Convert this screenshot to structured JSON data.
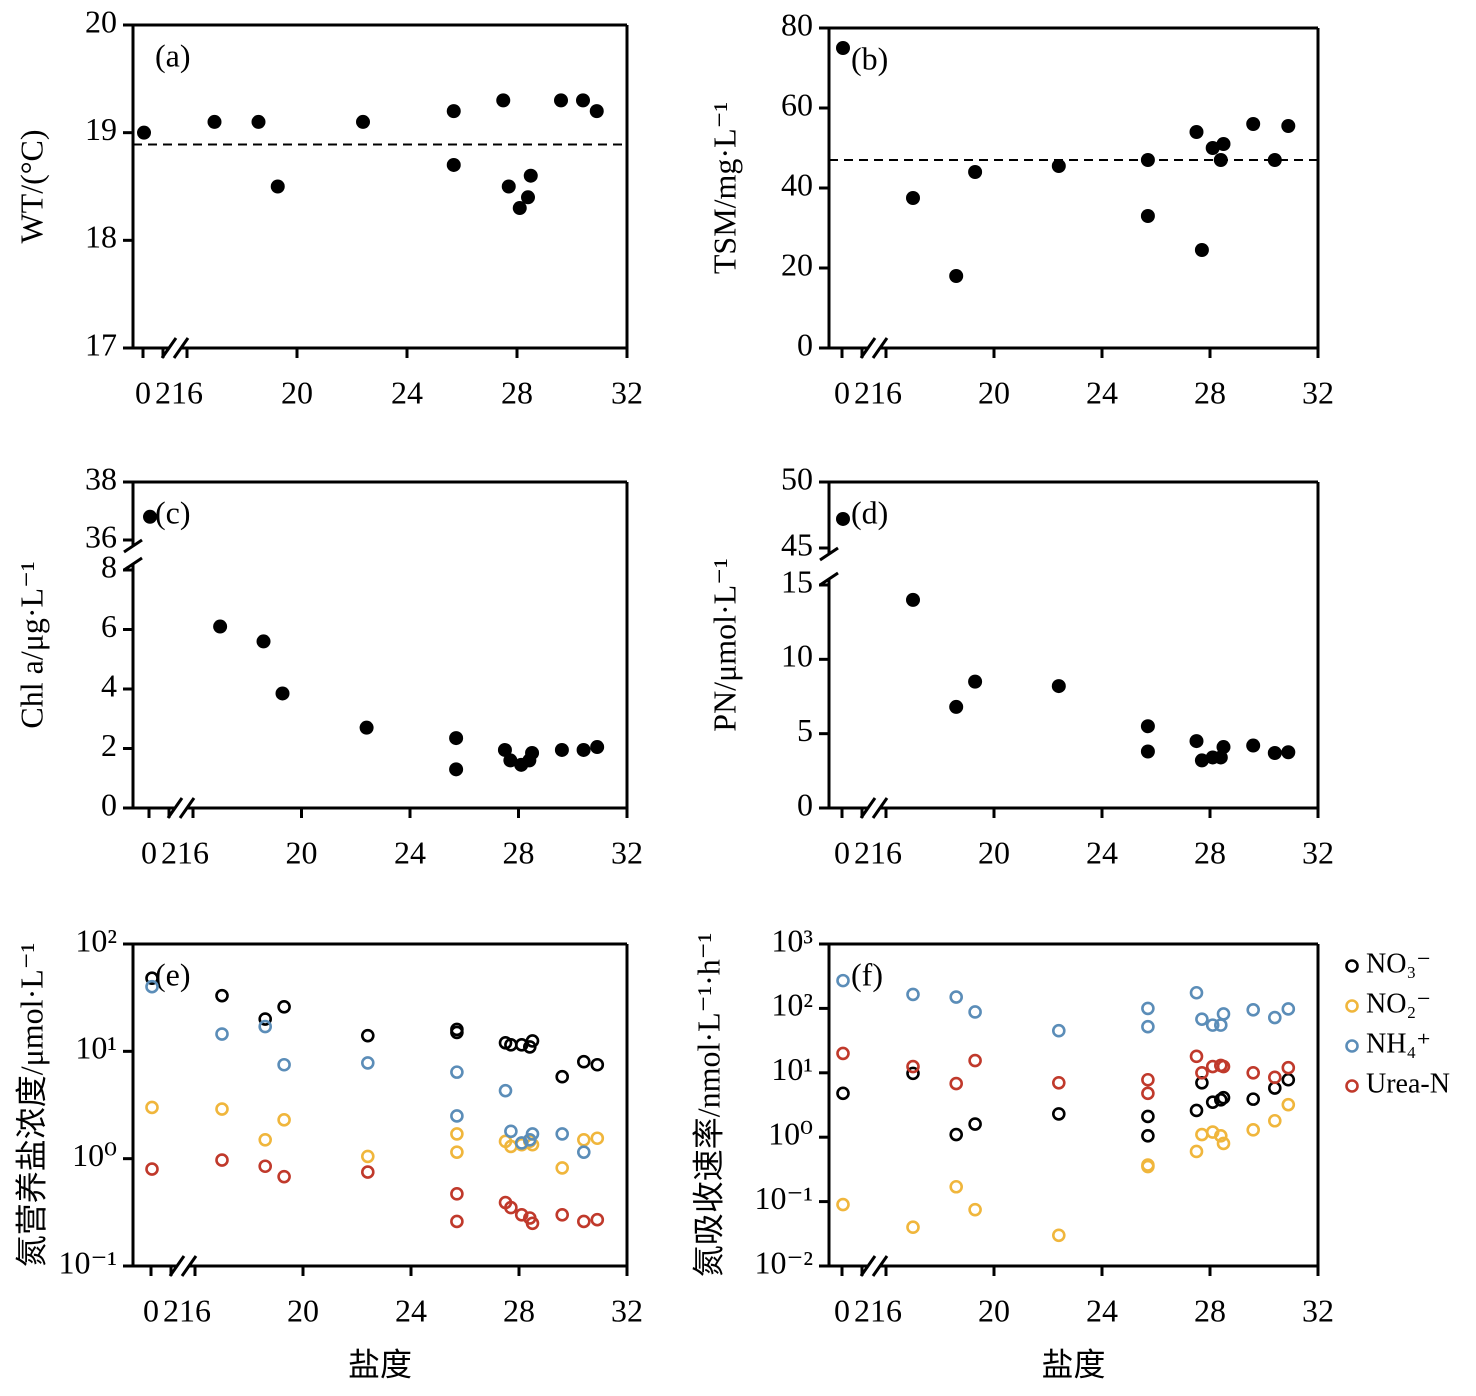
{
  "chart_data": [
    {
      "type": "scatter",
      "title": "(a)",
      "ylabel": "WT/(°C)",
      "color": "#000000",
      "x": [
        0.1,
        17.0,
        18.6,
        19.3,
        22.4,
        25.7,
        25.7,
        27.5,
        27.7,
        28.1,
        28.4,
        28.5,
        29.6,
        30.4,
        30.9
      ],
      "values": [
        19.0,
        19.1,
        19.1,
        18.5,
        19.1,
        19.2,
        18.7,
        19.3,
        18.5,
        18.3,
        18.4,
        18.6,
        19.3,
        19.3,
        19.2
      ],
      "hline": 18.89,
      "xlim": [
        0,
        32
      ],
      "x_break": [
        2,
        16
      ],
      "xticks": [
        0,
        2,
        16,
        20,
        24,
        28,
        32
      ],
      "ylim": [
        17,
        20
      ],
      "yticks": [
        17,
        18,
        19,
        20
      ]
    },
    {
      "type": "scatter",
      "title": "(b)",
      "ylabel": "TSM/mg·L⁻¹",
      "color": "#000000",
      "x": [
        0.1,
        17.0,
        18.6,
        19.3,
        22.4,
        25.7,
        25.7,
        27.5,
        27.7,
        28.1,
        28.4,
        28.5,
        29.6,
        30.4,
        30.9
      ],
      "values": [
        75,
        37.5,
        18,
        44,
        45.5,
        47,
        33,
        54,
        24.5,
        50,
        47,
        51,
        56,
        47,
        55.5
      ],
      "hline": 47,
      "xlim": [
        0,
        32
      ],
      "x_break": [
        2,
        16
      ],
      "xticks": [
        0,
        2,
        16,
        20,
        24,
        28,
        32
      ],
      "ylim": [
        0,
        80
      ],
      "yticks": [
        0,
        20,
        40,
        60,
        80
      ]
    },
    {
      "type": "scatter",
      "title": "(c)",
      "ylabel": "Chl a/μg·L⁻¹",
      "color": "#000000",
      "x": [
        0.1,
        17.0,
        18.6,
        19.3,
        22.4,
        25.7,
        25.7,
        27.5,
        27.7,
        28.1,
        28.4,
        28.5,
        29.6,
        30.4,
        30.9
      ],
      "values": [
        36.8,
        6.1,
        5.6,
        3.85,
        2.7,
        2.35,
        1.3,
        1.95,
        1.6,
        1.45,
        1.6,
        1.85,
        1.95,
        1.95,
        2.05
      ],
      "xlim": [
        0,
        32
      ],
      "x_break": [
        2,
        16
      ],
      "xticks": [
        0,
        2,
        16,
        20,
        24,
        28,
        32
      ],
      "ylim": [
        0,
        38
      ],
      "y_break": [
        8,
        36
      ],
      "yticks": [
        0,
        2,
        4,
        6,
        8,
        36,
        38
      ]
    },
    {
      "type": "scatter",
      "title": "(d)",
      "ylabel": "PN/μmol·L⁻¹",
      "color": "#000000",
      "x": [
        0.1,
        17.0,
        18.6,
        19.3,
        22.4,
        25.7,
        25.7,
        27.5,
        27.7,
        28.1,
        28.4,
        28.5,
        29.6,
        30.4,
        30.9
      ],
      "values": [
        47.2,
        14,
        6.8,
        8.5,
        8.2,
        5.5,
        3.8,
        4.5,
        3.2,
        3.4,
        3.4,
        4.1,
        4.2,
        3.7,
        3.75
      ],
      "xlim": [
        0,
        32
      ],
      "x_break": [
        2,
        16
      ],
      "xticks": [
        0,
        2,
        16,
        20,
        24,
        28,
        32
      ],
      "ylim": [
        0,
        50
      ],
      "y_break": [
        15,
        45
      ],
      "yticks": [
        0,
        5,
        10,
        15,
        45,
        50
      ]
    },
    {
      "type": "scatter",
      "title": "(e)",
      "ylabel": "氮营养盐浓度/μmol·L⁻¹",
      "xlabel": "盐度",
      "log_y": true,
      "marker": "open",
      "x": [
        0.1,
        17.0,
        18.6,
        19.3,
        22.4,
        25.7,
        25.7,
        27.5,
        27.7,
        28.1,
        28.4,
        28.5,
        29.6,
        30.4,
        30.9
      ],
      "series": [
        {
          "color": "#000000",
          "values": [
            48,
            33,
            20,
            26,
            14,
            16,
            15,
            12,
            11.5,
            11.5,
            11,
            12.5,
            5.8,
            8,
            7.5
          ]
        },
        {
          "color": "#f0b63c",
          "values": [
            3.0,
            2.9,
            1.5,
            2.3,
            1.05,
            1.7,
            1.15,
            1.45,
            1.3,
            1.35,
            1.45,
            1.35,
            0.82,
            1.5,
            1.55
          ]
        },
        {
          "color": "#5b8db8",
          "values": [
            40,
            14.5,
            17,
            7.5,
            7.8,
            6.4,
            2.5,
            4.3,
            1.8,
            1.4,
            1.5,
            1.7,
            1.7,
            1.15,
            null
          ]
        },
        {
          "color": "#c0392b",
          "values": [
            0.8,
            0.97,
            0.85,
            0.68,
            0.75,
            0.47,
            0.26,
            0.39,
            0.35,
            0.3,
            0.28,
            0.25,
            0.3,
            0.26,
            0.27
          ]
        }
      ],
      "xlim": [
        0,
        32
      ],
      "x_break": [
        2,
        16
      ],
      "xticks": [
        0,
        2,
        16,
        20,
        24,
        28,
        32
      ],
      "ylim": [
        0.1,
        100
      ],
      "yticks": [
        {
          "value": 0.1,
          "label": "10⁻¹"
        },
        {
          "value": 1,
          "label": "10⁰"
        },
        {
          "value": 10,
          "label": "10¹"
        },
        {
          "value": 100,
          "label": "10²"
        }
      ]
    },
    {
      "type": "scatter",
      "title": "(f)",
      "ylabel": "氮吸收速率/nmol·L⁻¹·h⁻¹",
      "xlabel": "盐度",
      "log_y": true,
      "marker": "open",
      "legend": "right",
      "x": [
        0.1,
        17.0,
        18.6,
        19.3,
        22.4,
        25.7,
        25.7,
        27.5,
        27.7,
        28.1,
        28.4,
        28.5,
        29.6,
        30.4,
        30.9
      ],
      "series": [
        {
          "name": "NO₃⁻",
          "color": "#000000",
          "values": [
            4.8,
            9.8,
            1.1,
            1.6,
            2.3,
            2.1,
            1.05,
            2.6,
            7,
            3.5,
            3.8,
            4.1,
            3.9,
            5.8,
            7.8
          ]
        },
        {
          "name": "NO₂⁻",
          "color": "#f0b63c",
          "values": [
            0.09,
            0.04,
            0.17,
            0.075,
            0.03,
            0.37,
            0.35,
            0.6,
            1.1,
            1.2,
            1.05,
            0.8,
            1.3,
            1.8,
            3.2
          ]
        },
        {
          "name": "NH₄⁺",
          "color": "#5b8db8",
          "values": [
            270,
            165,
            150,
            88,
            45,
            100,
            52,
            175,
            68,
            55,
            55,
            82,
            95,
            72,
            98
          ]
        },
        {
          "name": "Urea-N",
          "color": "#c0392b",
          "values": [
            20,
            12.5,
            6.8,
            15.5,
            7,
            7.8,
            4.8,
            18,
            10,
            12.5,
            13,
            12.5,
            10,
            8.5,
            12
          ]
        }
      ],
      "xlim": [
        0,
        32
      ],
      "x_break": [
        2,
        16
      ],
      "xticks": [
        0,
        2,
        16,
        20,
        24,
        28,
        32
      ],
      "ylim": [
        0.01,
        1000
      ],
      "yticks": [
        {
          "value": 0.01,
          "label": "10⁻²"
        },
        {
          "value": 0.1,
          "label": "10⁻¹"
        },
        {
          "value": 1,
          "label": "10⁰"
        },
        {
          "value": 10,
          "label": "10¹"
        },
        {
          "value": 100,
          "label": "10²"
        },
        {
          "value": 1000,
          "label": "10³"
        }
      ]
    }
  ]
}
